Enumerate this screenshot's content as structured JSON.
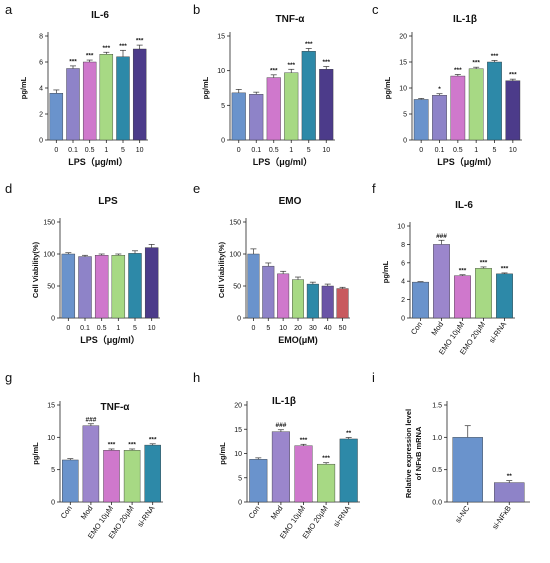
{
  "colors": {
    "blue": "#6a93cc",
    "lavender": "#8e83c8",
    "pink": "#cf78cc",
    "green": "#a7d984",
    "teal": "#2d89a8",
    "purple": "#4c3b8a",
    "violet": "#6a54a6",
    "red": "#c85a5e",
    "mod": "#9b86cc"
  },
  "chart_data": [
    {
      "type": "bar",
      "label": "a",
      "title": "IL-6",
      "ylabel": "pg/mL",
      "xlabel": "LPS（μg/ml）",
      "ylim": [
        0,
        8
      ],
      "yticks": [
        "0",
        "2",
        "4",
        "6",
        "8"
      ],
      "categories": [
        "0",
        "0.1",
        "0.5",
        "1",
        "5",
        "10"
      ],
      "values": [
        3.6,
        5.5,
        6.0,
        6.6,
        6.4,
        7.0
      ],
      "errors": [
        0.25,
        0.2,
        0.15,
        0.15,
        0.5,
        0.3
      ],
      "annotations": [
        "",
        "***",
        "***",
        "***",
        "***",
        "***"
      ],
      "colors": [
        "blue",
        "lavender",
        "pink",
        "green",
        "teal",
        "purple"
      ]
    },
    {
      "type": "bar",
      "label": "b",
      "title": "TNF-α",
      "ylabel": "pg/mL",
      "xlabel": "LPS（μg/ml）",
      "ylim": [
        0,
        15
      ],
      "yticks": [
        "0",
        "5",
        "10",
        "15"
      ],
      "categories": [
        "0",
        "0.1",
        "0.5",
        "1",
        "5",
        "10"
      ],
      "values": [
        6.8,
        6.6,
        9.0,
        9.7,
        12.8,
        10.2
      ],
      "errors": [
        0.5,
        0.3,
        0.4,
        0.5,
        0.4,
        0.4
      ],
      "annotations": [
        "",
        "",
        "***",
        "***",
        "***",
        "***"
      ],
      "colors": [
        "blue",
        "lavender",
        "pink",
        "green",
        "teal",
        "purple"
      ]
    },
    {
      "type": "bar",
      "label": "c",
      "title": "IL-1β",
      "ylabel": "pg/mL",
      "xlabel": "LPS（μg/ml）",
      "ylim": [
        0,
        20
      ],
      "yticks": [
        "0",
        "5",
        "10",
        "15",
        "20"
      ],
      "categories": [
        "0",
        "0.1",
        "0.5",
        "1",
        "5",
        "10"
      ],
      "values": [
        7.8,
        8.6,
        12.3,
        13.7,
        15.0,
        11.4
      ],
      "errors": [
        0.2,
        0.3,
        0.3,
        0.3,
        0.3,
        0.3
      ],
      "annotations": [
        "",
        "*",
        "***",
        "***",
        "***",
        "***"
      ],
      "colors": [
        "blue",
        "lavender",
        "pink",
        "green",
        "teal",
        "purple"
      ]
    },
    {
      "type": "bar",
      "label": "d",
      "title": "LPS",
      "ylabel": "Cell Viability(%)",
      "xlabel": "LPS（μg/ml）",
      "ylim": [
        0,
        150
      ],
      "yticks": [
        "0",
        "50",
        "100",
        "150"
      ],
      "categories": [
        "0",
        "0.1",
        "0.5",
        "1",
        "5",
        "10"
      ],
      "values": [
        100,
        96,
        98,
        98,
        101,
        110
      ],
      "errors": [
        2,
        2,
        2,
        2,
        4,
        5
      ],
      "annotations": [
        "",
        "",
        "",
        "",
        "",
        ""
      ],
      "colors": [
        "blue",
        "lavender",
        "pink",
        "green",
        "teal",
        "purple"
      ]
    },
    {
      "type": "bar",
      "label": "e",
      "title": "EMO",
      "ylabel": "Cell Viability(%)",
      "xlabel": "EMO(μM)",
      "ylim": [
        0,
        150
      ],
      "yticks": [
        "0",
        "50",
        "100",
        "150"
      ],
      "categories": [
        "0",
        "5",
        "10",
        "20",
        "30",
        "40",
        "50"
      ],
      "values": [
        100,
        81,
        69,
        60,
        53,
        50,
        46
      ],
      "errors": [
        8,
        5,
        4,
        4,
        3,
        3,
        2
      ],
      "annotations": [
        "",
        "",
        "",
        "",
        "",
        "",
        ""
      ],
      "colors": [
        "blue",
        "lavender",
        "pink",
        "green",
        "teal",
        "violet",
        "red"
      ]
    },
    {
      "type": "bar",
      "label": "f",
      "title": "IL-6",
      "ylabel": "pg/mL",
      "xlabel": "",
      "ylim": [
        0,
        10
      ],
      "yticks": [
        "0",
        "2",
        "4",
        "6",
        "8",
        "10"
      ],
      "categories": [
        "Con",
        "Mod",
        "EMO 10μM",
        "EMO 20μM",
        "si-RNA"
      ],
      "values": [
        3.9,
        8.0,
        4.6,
        5.4,
        4.8
      ],
      "errors": [
        0.05,
        0.45,
        0.1,
        0.15,
        0.1
      ],
      "annotations": [
        "",
        "###",
        "***",
        "***",
        "***"
      ],
      "colors": [
        "blue",
        "mod",
        "pink",
        "green",
        "teal"
      ]
    },
    {
      "type": "bar",
      "label": "g",
      "title": "TNF-α",
      "ylabel": "pg/mL",
      "xlabel": "",
      "ylim": [
        0,
        15
      ],
      "yticks": [
        "0",
        "5",
        "10",
        "15"
      ],
      "categories": [
        "Con",
        "Mod",
        "EMO 10μM",
        "EMO 20μM",
        "si-RNA"
      ],
      "values": [
        6.5,
        11.8,
        8.0,
        8.0,
        8.8
      ],
      "errors": [
        0.2,
        0.3,
        0.2,
        0.2,
        0.2
      ],
      "annotations": [
        "",
        "###",
        "***",
        "***",
        "***"
      ],
      "colors": [
        "blue",
        "mod",
        "pink",
        "green",
        "teal"
      ]
    },
    {
      "type": "bar",
      "label": "h",
      "title": "IL-1β",
      "ylabel": "pg/mL",
      "xlabel": "",
      "ylim": [
        0,
        20
      ],
      "yticks": [
        "0",
        "5",
        "10",
        "15",
        "20"
      ],
      "categories": [
        "Con",
        "Mod",
        "EMO 10μM",
        "EMO 20μM",
        "si-RNA"
      ],
      "values": [
        8.8,
        14.5,
        11.6,
        7.8,
        13.0
      ],
      "errors": [
        0.3,
        0.4,
        0.3,
        0.3,
        0.3
      ],
      "annotations": [
        "",
        "###",
        "***",
        "***",
        "**"
      ],
      "colors": [
        "blue",
        "mod",
        "pink",
        "green",
        "teal"
      ]
    },
    {
      "type": "bar",
      "label": "i",
      "title": "",
      "ylabel": "Relative expression level of NFκB mRNA",
      "xlabel": "",
      "ylim": [
        0,
        1.5
      ],
      "yticks": [
        "0.0",
        "0.5",
        "1.0",
        "1.5"
      ],
      "categories": [
        "si-NC",
        "si-NFκB"
      ],
      "values": [
        1.0,
        0.3
      ],
      "errors": [
        0.18,
        0.03
      ],
      "annotations": [
        "",
        "**"
      ],
      "colors": [
        "blue",
        "lavender"
      ]
    }
  ]
}
